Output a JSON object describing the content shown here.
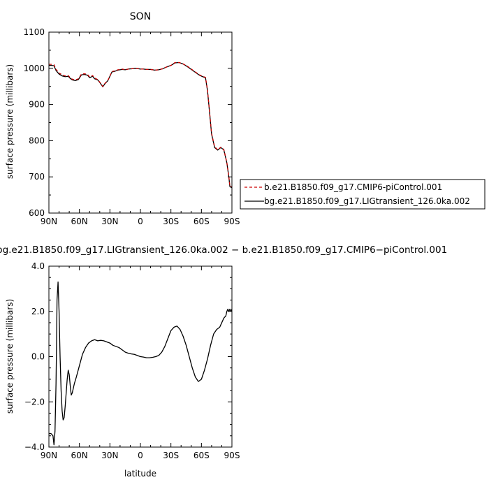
{
  "chart_data": [
    {
      "type": "line",
      "title": "SON",
      "xlabel": "",
      "ylabel": "surface pressure (millibars)",
      "x_tick_labels": [
        "90N",
        "60N",
        "30N",
        "0",
        "30S",
        "60S",
        "90S"
      ],
      "x_ticks": [
        -90,
        -60,
        -30,
        0,
        30,
        60,
        90
      ],
      "xlim": [
        -90,
        90
      ],
      "ylim": [
        600,
        1100
      ],
      "y_ticks": [
        600,
        700,
        800,
        900,
        1000,
        1100
      ],
      "y_tick_labels": [
        "600",
        "700",
        "800",
        "900",
        "1000",
        "1100"
      ],
      "legend_position": "right",
      "series": [
        {
          "name": "b.e21.B1850.f09_g17.CMIP6-piControl.001",
          "color": "#cc0000",
          "dash": "dashed",
          "x": [
            -90,
            -87,
            -85,
            -83,
            -80,
            -77,
            -74,
            -71,
            -69,
            -67,
            -64,
            -61,
            -58,
            -55,
            -52,
            -50,
            -47,
            -45,
            -42,
            -40,
            -37,
            -35,
            -32,
            -28,
            -25,
            -22,
            -18,
            -15,
            -12,
            -8,
            -5,
            -2,
            0,
            3,
            6,
            10,
            14,
            18,
            22,
            26,
            30,
            34,
            38,
            42,
            46,
            50,
            54,
            58,
            62,
            64,
            66,
            68,
            70,
            73,
            76,
            79,
            82,
            85,
            87,
            88,
            90
          ],
          "values": [
            1011,
            1011,
            1010,
            997,
            987,
            982,
            979,
            980,
            974,
            970,
            968,
            971,
            984,
            985,
            983,
            976,
            980,
            973,
            969,
            962,
            950,
            958,
            967,
            991,
            993,
            996,
            998,
            996,
            998,
            999,
            1000,
            999,
            998,
            998,
            997,
            997,
            995,
            996,
            999,
            1004,
            1008,
            1016,
            1016,
            1012,
            1006,
            998,
            990,
            982,
            977,
            975,
            940,
            880,
            820,
            783,
            775,
            782,
            776,
            740,
            700,
            675,
            672
          ]
        },
        {
          "name": "bg.e21.B1850.f09_g17.LIGtransient_126.0ka.002",
          "color": "#000000",
          "dash": "solid",
          "x": [
            -90,
            -87,
            -85,
            -83,
            -80,
            -77,
            -74,
            -71,
            -69,
            -67,
            -64,
            -61,
            -58,
            -55,
            -52,
            -50,
            -47,
            -45,
            -42,
            -40,
            -37,
            -35,
            -32,
            -28,
            -25,
            -22,
            -18,
            -15,
            -12,
            -8,
            -5,
            -2,
            0,
            3,
            6,
            10,
            14,
            18,
            22,
            26,
            30,
            34,
            38,
            42,
            46,
            50,
            54,
            58,
            62,
            64,
            66,
            68,
            70,
            73,
            76,
            79,
            82,
            85,
            87,
            88,
            90
          ],
          "values": [
            1008,
            1008,
            1007,
            994,
            984,
            979,
            977,
            978,
            972,
            968,
            966,
            969,
            982,
            983,
            981,
            974,
            978,
            971,
            968,
            961,
            949,
            957,
            966,
            990,
            992,
            995,
            997,
            996,
            998,
            999,
            1000,
            999,
            998,
            998,
            997,
            997,
            995,
            996,
            999,
            1004,
            1008,
            1015,
            1016,
            1012,
            1005,
            997,
            989,
            981,
            976,
            974,
            938,
            878,
            818,
            781,
            774,
            781,
            775,
            739,
            699,
            673,
            670
          ]
        }
      ]
    },
    {
      "type": "line",
      "title": "bg.e21.B1850.f09_g17.LIGtransient_126.0ka.002 − b.e21.B1850.f09_g17.CMIP6−piControl.001",
      "xlabel": "latitude",
      "ylabel": "surface pressure (millibars)",
      "x_tick_labels": [
        "90N",
        "60N",
        "30N",
        "0",
        "30S",
        "60S",
        "90S"
      ],
      "x_ticks": [
        -90,
        -60,
        -30,
        0,
        30,
        60,
        90
      ],
      "xlim": [
        -90,
        90
      ],
      "ylim": [
        -4,
        4
      ],
      "y_ticks": [
        -4,
        -2,
        0,
        2,
        4
      ],
      "y_tick_labels": [
        "−4.0",
        "−2.0",
        "0.0",
        "2.0",
        "4.0"
      ],
      "series": [
        {
          "color": "#000000",
          "x": [
            -90,
            -88,
            -86,
            -85,
            -84,
            -83,
            -82.5,
            -82,
            -81,
            -80,
            -79,
            -78,
            -77,
            -76,
            -75,
            -74,
            -73,
            -72,
            -71,
            -70,
            -69,
            -68,
            -67,
            -66,
            -65,
            -63,
            -60,
            -57,
            -54,
            -51,
            -48,
            -45,
            -42,
            -39,
            -36,
            -33,
            -30,
            -27,
            -24,
            -21,
            -18,
            -15,
            -12,
            -9,
            -6,
            -3,
            0,
            3,
            6,
            9,
            12,
            15,
            18,
            21,
            24,
            27,
            30,
            33,
            36,
            39,
            42,
            45,
            48,
            51,
            54,
            57,
            60,
            63,
            66,
            69,
            72,
            75,
            78,
            80,
            82,
            84,
            85,
            86,
            87,
            88,
            89,
            90
          ],
          "values": [
            -3.4,
            -3.4,
            -3.5,
            -3.9,
            -3.3,
            -1.2,
            0.5,
            2.5,
            3.3,
            2.0,
            0.0,
            -1.5,
            -2.4,
            -2.8,
            -2.7,
            -2.2,
            -1.6,
            -1.0,
            -0.6,
            -0.8,
            -1.3,
            -1.7,
            -1.6,
            -1.4,
            -1.2,
            -0.9,
            -0.4,
            0.1,
            0.4,
            0.6,
            0.7,
            0.75,
            0.7,
            0.72,
            0.7,
            0.65,
            0.6,
            0.5,
            0.45,
            0.4,
            0.3,
            0.2,
            0.15,
            0.12,
            0.1,
            0.05,
            0.0,
            -0.02,
            -0.05,
            -0.05,
            -0.03,
            0.0,
            0.05,
            0.2,
            0.45,
            0.8,
            1.15,
            1.3,
            1.35,
            1.2,
            0.9,
            0.5,
            0.0,
            -0.5,
            -0.9,
            -1.1,
            -1.0,
            -0.6,
            -0.1,
            0.5,
            1.0,
            1.2,
            1.3,
            1.5,
            1.7,
            1.8,
            2.0,
            2.1,
            2.0,
            2.1,
            2.0,
            2.1
          ]
        }
      ]
    }
  ]
}
